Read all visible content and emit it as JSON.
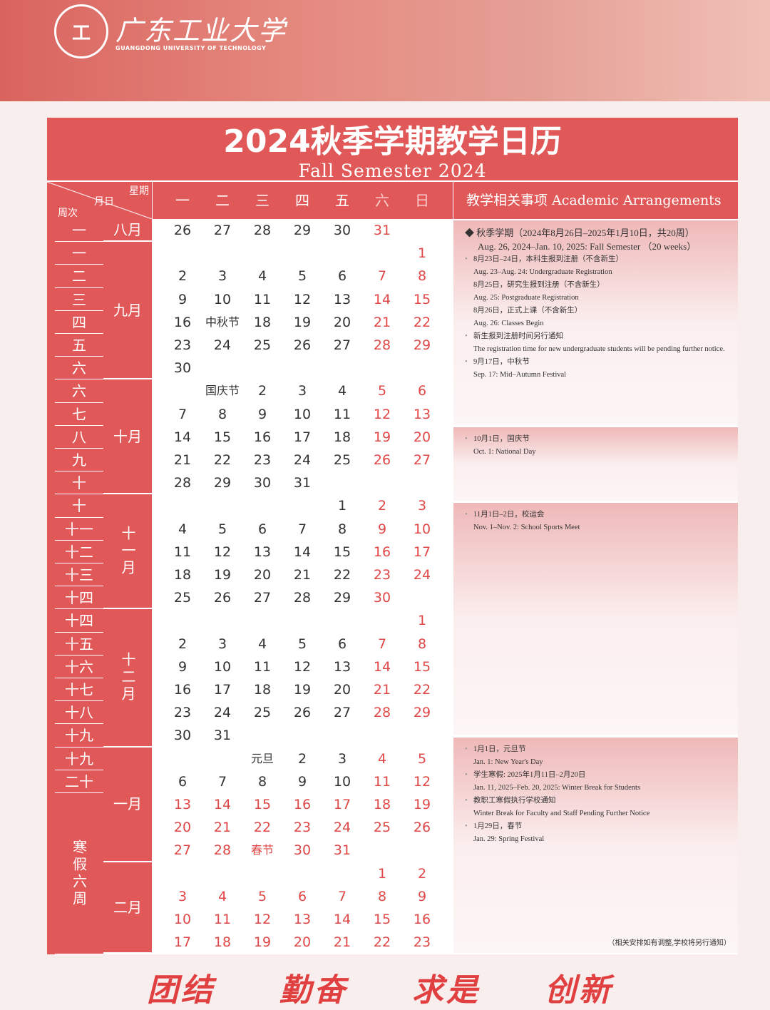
{
  "header": {
    "logo_cn": "广东工业大学",
    "logo_en": "GUANGDONG UNIVERSITY OF TECHNOLOGY"
  },
  "title": {
    "cn": "2024秋季学期教学日历",
    "en": "Fall Semester 2024"
  },
  "corner": {
    "weekday": "星期",
    "date": "月日",
    "week": "周次"
  },
  "weekdays": [
    "一",
    "二",
    "三",
    "四",
    "五",
    "六",
    "日"
  ],
  "arrangements_header": "教学相关事项 Academic Arrangements",
  "colors": {
    "accent": "#e05858",
    "weekend": "#e04848"
  },
  "months": [
    {
      "label": "八月",
      "rows": 1
    },
    {
      "label": "九月",
      "rows": 6
    },
    {
      "label": "十月",
      "rows": 5
    },
    {
      "label": "十一月",
      "rows": 5,
      "vertical": true
    },
    {
      "label": "十二月",
      "rows": 6,
      "vertical": true
    },
    {
      "label": "一月",
      "rows": 5
    },
    {
      "label": "二月",
      "rows": 4
    }
  ],
  "winter_break_label": "寒假六周",
  "rows": [
    {
      "week": "一",
      "cells": [
        "26",
        "27",
        "28",
        "29",
        "30",
        "31",
        ""
      ]
    },
    {
      "week": "一",
      "cells": [
        "",
        "",
        "",
        "",
        "",
        "",
        "1"
      ]
    },
    {
      "week": "二",
      "cells": [
        "2",
        "3",
        "4",
        "5",
        "6",
        "7",
        "8"
      ]
    },
    {
      "week": "三",
      "cells": [
        "9",
        "10",
        "11",
        "12",
        "13",
        "14",
        "15"
      ]
    },
    {
      "week": "四",
      "cells": [
        "16",
        "中秋节",
        "18",
        "19",
        "20",
        "21",
        "22"
      ]
    },
    {
      "week": "五",
      "cells": [
        "23",
        "24",
        "25",
        "26",
        "27",
        "28",
        "29"
      ]
    },
    {
      "week": "六",
      "cells": [
        "30",
        "",
        "",
        "",
        "",
        "",
        ""
      ]
    },
    {
      "week": "六",
      "cells": [
        "",
        "国庆节",
        "2",
        "3",
        "4",
        "5",
        "6"
      ]
    },
    {
      "week": "七",
      "cells": [
        "7",
        "8",
        "9",
        "10",
        "11",
        "12",
        "13"
      ]
    },
    {
      "week": "八",
      "cells": [
        "14",
        "15",
        "16",
        "17",
        "18",
        "19",
        "20"
      ]
    },
    {
      "week": "九",
      "cells": [
        "21",
        "22",
        "23",
        "24",
        "25",
        "26",
        "27"
      ]
    },
    {
      "week": "十",
      "cells": [
        "28",
        "29",
        "30",
        "31",
        "",
        "",
        ""
      ]
    },
    {
      "week": "十",
      "cells": [
        "",
        "",
        "",
        "",
        "1",
        "2",
        "3"
      ]
    },
    {
      "week": "十一",
      "cells": [
        "4",
        "5",
        "6",
        "7",
        "8",
        "9",
        "10"
      ]
    },
    {
      "week": "十二",
      "cells": [
        "11",
        "12",
        "13",
        "14",
        "15",
        "16",
        "17"
      ]
    },
    {
      "week": "十三",
      "cells": [
        "18",
        "19",
        "20",
        "21",
        "22",
        "23",
        "24"
      ]
    },
    {
      "week": "十四",
      "cells": [
        "25",
        "26",
        "27",
        "28",
        "29",
        "30",
        ""
      ]
    },
    {
      "week": "十四",
      "cells": [
        "",
        "",
        "",
        "",
        "",
        "",
        "1"
      ]
    },
    {
      "week": "十五",
      "cells": [
        "2",
        "3",
        "4",
        "5",
        "6",
        "7",
        "8"
      ]
    },
    {
      "week": "十六",
      "cells": [
        "9",
        "10",
        "11",
        "12",
        "13",
        "14",
        "15"
      ]
    },
    {
      "week": "十七",
      "cells": [
        "16",
        "17",
        "18",
        "19",
        "20",
        "21",
        "22"
      ]
    },
    {
      "week": "十八",
      "cells": [
        "23",
        "24",
        "25",
        "26",
        "27",
        "28",
        "29"
      ]
    },
    {
      "week": "十九",
      "cells": [
        "30",
        "31",
        "",
        "",
        "",
        "",
        ""
      ]
    },
    {
      "week": "十九",
      "cells": [
        "",
        "",
        "元旦",
        "2",
        "3",
        "4",
        "5"
      ]
    },
    {
      "week": "二十",
      "cells": [
        "6",
        "7",
        "8",
        "9",
        "10",
        "11",
        "12"
      ]
    },
    {
      "week": "",
      "break": true,
      "cells": [
        "13",
        "14",
        "15",
        "16",
        "17",
        "18",
        "19"
      ]
    },
    {
      "week": "",
      "break": true,
      "cells": [
        "20",
        "21",
        "22",
        "23",
        "24",
        "25",
        "26"
      ]
    },
    {
      "week": "",
      "break": true,
      "cells": [
        "27",
        "28",
        "春节",
        "30",
        "31",
        "",
        ""
      ]
    },
    {
      "week": "",
      "break": true,
      "cells": [
        "",
        "",
        "",
        "",
        "",
        "1",
        "2"
      ]
    },
    {
      "week": "",
      "break": true,
      "cells": [
        "3",
        "4",
        "5",
        "6",
        "7",
        "8",
        "9"
      ]
    },
    {
      "week": "",
      "break": true,
      "cells": [
        "10",
        "11",
        "12",
        "13",
        "14",
        "15",
        "16"
      ]
    },
    {
      "week": "",
      "break": true,
      "cells": [
        "17",
        "18",
        "19",
        "20",
        "21",
        "22",
        "23"
      ]
    }
  ],
  "panels": [
    {
      "main": [
        "◆ 秋季学期（2024年8月26日–2025年1月10日，共20周）",
        "Aug. 26, 2024–Jan. 10, 2025: Fall Semester （20 weeks）"
      ],
      "items": [
        {
          "t": "8月23日–24日，本科生报到注册（不含新生）",
          "b": true
        },
        {
          "t": "Aug. 23–Aug. 24: Undergraduate Registration"
        },
        {
          "t": "8月25日，研究生报到注册（不含新生）"
        },
        {
          "t": "Aug. 25: Postgraduate Registration"
        },
        {
          "t": "8月26日，正式上课（不含新生）"
        },
        {
          "t": "Aug. 26: Classes Begin"
        },
        {
          "t": "新生报到注册时间另行通知",
          "b": true
        },
        {
          "t": "The registration time for new undergraduate students will be pending further notice."
        },
        {
          "t": "9月17日，中秋节",
          "b": true
        },
        {
          "t": "Sep. 17: Mid–Autumn Festival"
        }
      ]
    },
    {
      "items": [
        {
          "t": "10月1日，国庆节",
          "b": true
        },
        {
          "t": "Oct. 1: National Day"
        }
      ]
    },
    {
      "items": [
        {
          "t": "11月1日–2日，校运会",
          "b": true
        },
        {
          "t": "Nov. 1–Nov. 2: School Sports Meet"
        }
      ]
    },
    {
      "items": [
        {
          "t": "1月1日，元旦节",
          "b": true
        },
        {
          "t": "Jan. 1: New Year's Day"
        },
        {
          "t": "学生寒假: 2025年1月11日–2月20日",
          "b": true
        },
        {
          "t": "Jan. 11, 2025–Feb. 20, 2025: Winter Break for Students"
        },
        {
          "t": "教职工寒假执行学校通知",
          "b": true
        },
        {
          "t": "Winter Break for Faculty and Staff Pending Further Notice"
        },
        {
          "t": "1月29日，春节",
          "b": true
        },
        {
          "t": "Jan. 29: Spring Festival"
        }
      ]
    }
  ],
  "footnote": "（相关安排如有调整,学校将另行通知）",
  "slogans": [
    "团结",
    "勤奋",
    "求是",
    "创新"
  ]
}
